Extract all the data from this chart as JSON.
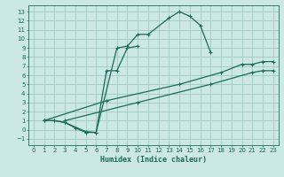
{
  "xlabel": "Humidex (Indice chaleur)",
  "bg_color": "#cce8e4",
  "grid_color": "#9ec8c4",
  "line_color": "#1a6b5a",
  "xlim": [
    -0.5,
    23.5
  ],
  "ylim": [
    -1.7,
    13.7
  ],
  "xticks": [
    0,
    1,
    2,
    3,
    4,
    5,
    6,
    7,
    8,
    9,
    10,
    11,
    12,
    13,
    14,
    15,
    16,
    17,
    18,
    19,
    20,
    21,
    22,
    23
  ],
  "yticks": [
    -1,
    0,
    1,
    2,
    3,
    4,
    5,
    6,
    7,
    8,
    9,
    10,
    11,
    12,
    13
  ],
  "line1_x": [
    1,
    2,
    3,
    4,
    5,
    6,
    8,
    9,
    10,
    11,
    13,
    14,
    15,
    16,
    17
  ],
  "line1_y": [
    1.0,
    1.0,
    0.8,
    0.2,
    -0.3,
    -0.3,
    9.0,
    9.2,
    10.5,
    10.5,
    12.3,
    13.0,
    12.5,
    11.5,
    8.5
  ],
  "line2_x": [
    1,
    2,
    3,
    5,
    6,
    7,
    8,
    9,
    10
  ],
  "line2_y": [
    1.0,
    1.0,
    0.8,
    -0.2,
    -0.3,
    6.5,
    6.5,
    9.0,
    9.2
  ],
  "line3_x": [
    1,
    7,
    14,
    18,
    20,
    21,
    22,
    23
  ],
  "line3_y": [
    1.0,
    3.2,
    5.0,
    6.3,
    7.2,
    7.2,
    7.5,
    7.5
  ],
  "line4_x": [
    3,
    10,
    17,
    21,
    22,
    23
  ],
  "line4_y": [
    1.0,
    3.0,
    5.0,
    6.3,
    6.5,
    6.5
  ]
}
